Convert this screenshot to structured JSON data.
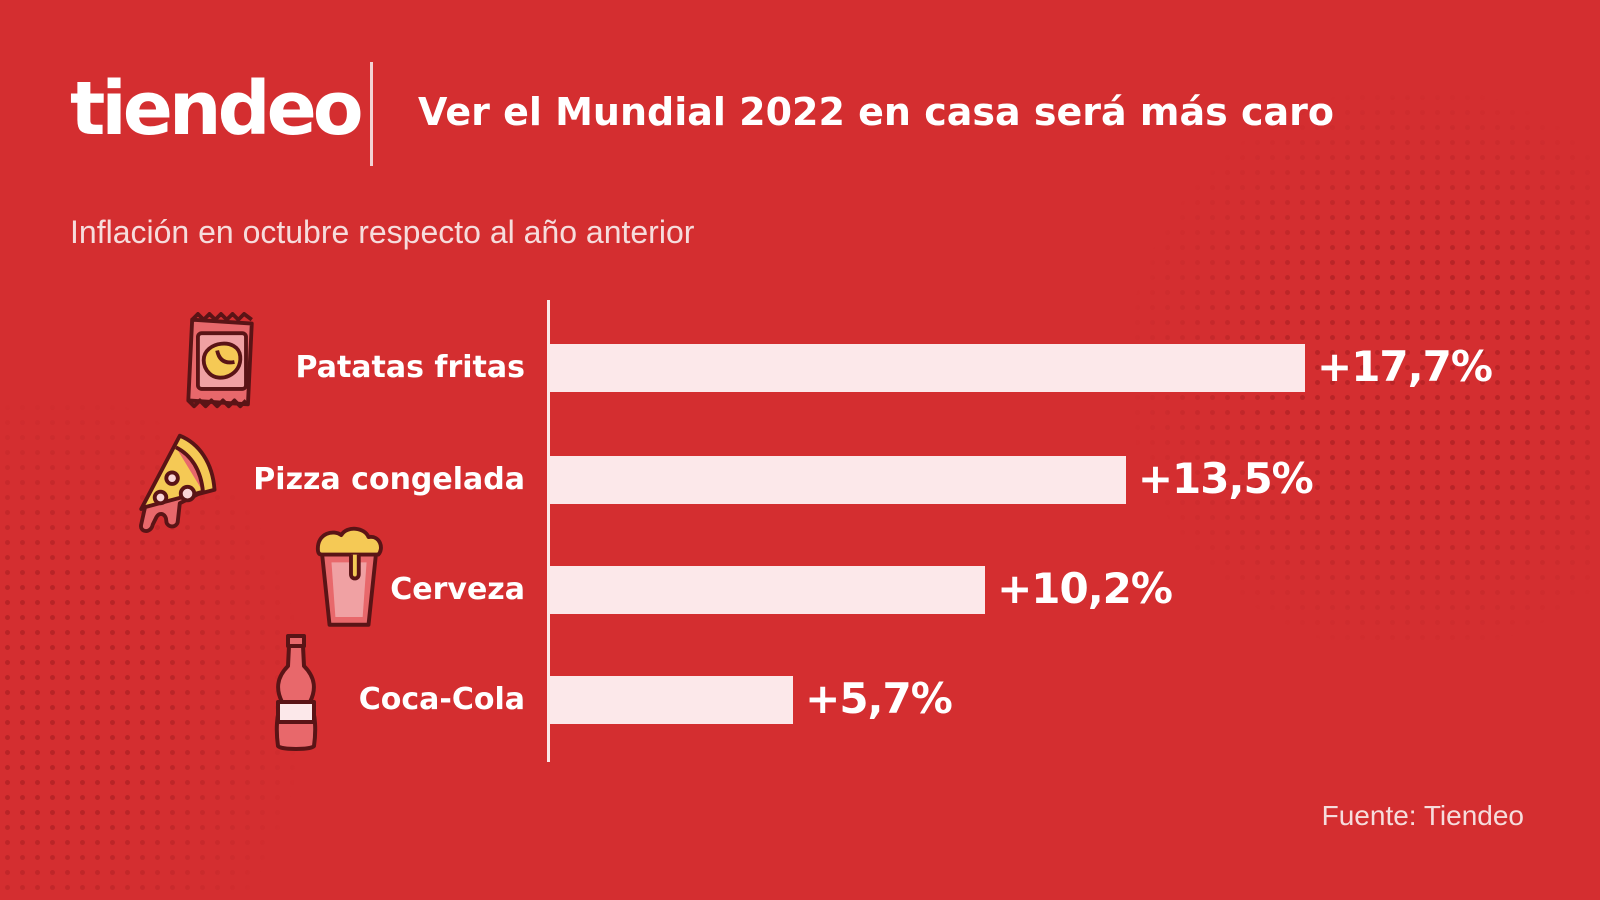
{
  "header": {
    "logo_text": "tiendeo",
    "title": "Ver el Mundial 2022 en casa será más caro"
  },
  "subtitle": "Inflación en octubre respecto al año anterior",
  "source": "Fuente: Tiendeo",
  "colors": {
    "background": "#d42e30",
    "bar": "#fce8ea",
    "text": "#ffffff"
  },
  "chart_data": {
    "type": "bar",
    "orientation": "horizontal",
    "title": "Ver el Mundial 2022 en casa será más caro",
    "subtitle": "Inflación en octubre respecto al año anterior",
    "categories": [
      "Patatas fritas",
      "Pizza congelada",
      "Cerveza",
      "Coca-Cola"
    ],
    "values": [
      17.7,
      13.5,
      10.2,
      5.7
    ],
    "value_labels": [
      "+17,7%",
      "+13,5%",
      "+10,2%",
      "+5,7%"
    ],
    "icons": [
      "chips-bag-icon",
      "pizza-slice-icon",
      "beer-glass-icon",
      "cola-bottle-icon"
    ],
    "xlim": [
      0,
      17.7
    ],
    "xlabel": "",
    "ylabel": "",
    "grid": false,
    "legend": "none"
  }
}
